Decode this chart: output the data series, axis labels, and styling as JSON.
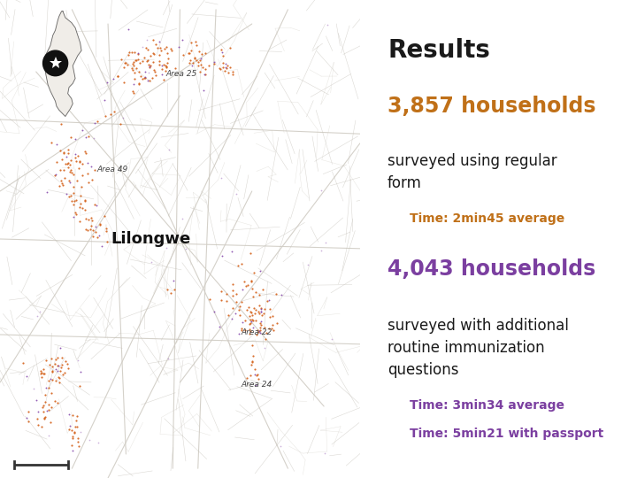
{
  "bg_color": "#ffffff",
  "map_bg": "#f5f3ee",
  "right_panel_bg": "#ffffff",
  "title": "Results",
  "title_color": "#1a1a1a",
  "title_fontsize": 20,
  "title_fontweight": "bold",
  "line1_number": "3,857 households",
  "line1_number_color": "#c07018",
  "line1_number_fontsize": 17,
  "line1_number_fontweight": "bold",
  "line1_desc": "surveyed using regular\nform",
  "line1_desc_color": "#1a1a1a",
  "line1_desc_fontsize": 12,
  "line1_time": "Time: 2min45 average",
  "line1_time_color": "#c07018",
  "line1_time_fontsize": 10,
  "line1_time_fontweight": "bold",
  "line2_number": "4,043 households",
  "line2_number_color": "#7b3fa0",
  "line2_number_fontsize": 17,
  "line2_number_fontweight": "bold",
  "line2_desc": "surveyed with additional\nroutine immunization\nquestions",
  "line2_desc_color": "#1a1a1a",
  "line2_desc_fontsize": 12,
  "line2_time1": "Time: 3min34 average",
  "line2_time2": "Time: 5min21 with passport",
  "line2_time_color": "#7b3fa0",
  "line2_time_fontsize": 10,
  "line2_time_fontweight": "bold",
  "map_label_lilongwe": "Lilongwe",
  "map_label_area25": "Area 25",
  "map_label_area49": "Area 49",
  "map_label_area22": "Area 22",
  "map_label_area24": "Area 24",
  "map_road_color": "#d0ccc4",
  "map_road_color2": "#c4c0b8",
  "map_dot_orange": "#d4621a",
  "map_dot_purple": "#8040a8",
  "inset_bg": "#909090",
  "inset_country_color": "#f0ede8",
  "inset_border_color": "#666666",
  "inset_star_color": "#ffffff",
  "inset_circle_color": "#111111"
}
